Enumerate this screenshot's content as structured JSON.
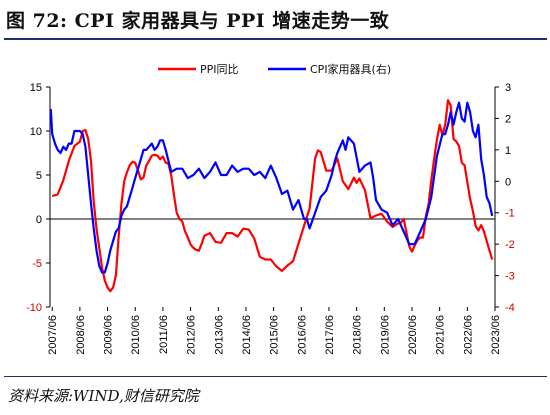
{
  "title": "图 72:  CPI 家用器具与 PPI 增速走势一致",
  "source": "资料来源:WIND,财信研究院",
  "chart_data": {
    "type": "line",
    "title": "图 72:  CPI 家用器具与 PPI 增速走势一致",
    "legend": "top-center",
    "left_axis": {
      "ylim": [
        -10,
        15
      ],
      "ticks": [
        "15",
        "10",
        "5",
        "0",
        "-5",
        "-10"
      ],
      "tick_values": [
        15,
        10,
        5,
        0,
        -5,
        -10
      ],
      "neg_color": "#d00000"
    },
    "right_axis": {
      "ylim": [
        -4,
        3
      ],
      "ticks": [
        "3",
        "2",
        "1",
        "0",
        "-1",
        "-2",
        "-3",
        "-4"
      ],
      "tick_values": [
        3,
        2,
        1,
        0,
        -1,
        -2,
        -3,
        -4
      ],
      "neg_color": "#d00000"
    },
    "x_range": [
      2007.42,
      2023.5
    ],
    "x_ticks": [
      "2007/06",
      "2008/06",
      "2009/06",
      "2010/06",
      "2011/06",
      "2012/06",
      "2013/06",
      "2014/06",
      "2015/06",
      "2016/06",
      "2017/06",
      "2018/06",
      "2019/06",
      "2020/06",
      "2021/06",
      "2022/06",
      "2023/06"
    ],
    "series": [
      {
        "name": "PPI同比",
        "axis": "left",
        "color": "#ff0000",
        "x": [
          2007.5,
          2007.7,
          2007.9,
          2008.1,
          2008.3,
          2008.5,
          2008.6,
          2008.7,
          2008.8,
          2008.9,
          2009.0,
          2009.1,
          2009.2,
          2009.3,
          2009.4,
          2009.5,
          2009.6,
          2009.7,
          2009.8,
          2009.9,
          2010.0,
          2010.1,
          2010.2,
          2010.3,
          2010.4,
          2010.5,
          2010.6,
          2010.7,
          2010.8,
          2010.9,
          2011.0,
          2011.1,
          2011.2,
          2011.3,
          2011.4,
          2011.5,
          2011.6,
          2011.7,
          2011.8,
          2011.9,
          2012.0,
          2012.1,
          2012.2,
          2012.3,
          2012.4,
          2012.5,
          2012.6,
          2012.7,
          2012.8,
          2012.9,
          2013.0,
          2013.2,
          2013.4,
          2013.6,
          2013.8,
          2014.0,
          2014.2,
          2014.4,
          2014.6,
          2014.8,
          2015.0,
          2015.2,
          2015.4,
          2015.6,
          2015.8,
          2016.0,
          2016.2,
          2016.4,
          2016.6,
          2016.8,
          2017.0,
          2017.1,
          2017.2,
          2017.4,
          2017.6,
          2017.8,
          2018.0,
          2018.2,
          2018.4,
          2018.5,
          2018.6,
          2018.8,
          2019.0,
          2019.2,
          2019.4,
          2019.6,
          2019.8,
          2020.0,
          2020.1,
          2020.2,
          2020.3,
          2020.4,
          2020.5,
          2020.6,
          2020.7,
          2020.8,
          2020.9,
          2021.0,
          2021.1,
          2021.2,
          2021.3,
          2021.4,
          2021.5,
          2021.6,
          2021.7,
          2021.8,
          2021.9,
          2022.0,
          2022.1,
          2022.2,
          2022.3,
          2022.4,
          2022.5,
          2022.6,
          2022.7,
          2022.8,
          2022.9,
          2023.0,
          2023.1,
          2023.2,
          2023.3,
          2023.4
        ],
        "values": [
          2.6,
          2.8,
          4.4,
          6.6,
          8.3,
          8.8,
          10.0,
          10.1,
          9.1,
          6.6,
          2.0,
          -1.1,
          -3.3,
          -5.5,
          -7.0,
          -7.8,
          -8.2,
          -7.8,
          -6.4,
          -2.1,
          1.7,
          4.3,
          5.3,
          6.1,
          6.5,
          6.4,
          5.5,
          4.5,
          4.7,
          6.1,
          6.6,
          7.2,
          7.3,
          7.2,
          6.8,
          7.1,
          6.4,
          6.3,
          5.0,
          2.7,
          0.7,
          0.0,
          -0.3,
          -1.4,
          -2.1,
          -2.9,
          -3.3,
          -3.5,
          -3.6,
          -2.8,
          -1.9,
          -1.6,
          -2.6,
          -2.7,
          -1.6,
          -1.6,
          -2.0,
          -1.1,
          -1.2,
          -2.2,
          -4.3,
          -4.6,
          -4.6,
          -5.4,
          -5.9,
          -5.3,
          -4.8,
          -2.8,
          -0.8,
          1.2,
          6.9,
          7.8,
          7.6,
          5.5,
          5.5,
          6.9,
          4.3,
          3.4,
          4.7,
          4.1,
          4.6,
          3.3,
          0.1,
          0.4,
          0.6,
          -0.3,
          -0.9,
          -0.5,
          -0.4,
          0.0,
          -1.5,
          -3.1,
          -3.7,
          -3.0,
          -2.4,
          -2.1,
          -2.1,
          0.3,
          1.7,
          4.4,
          6.8,
          9.0,
          10.7,
          9.5,
          10.7,
          13.5,
          12.9,
          9.1,
          8.8,
          8.3,
          6.4,
          6.1,
          4.2,
          2.3,
          0.9,
          -0.8,
          -1.3,
          -0.7,
          -1.4,
          -2.5,
          -3.6,
          -4.6
        ]
      },
      {
        "name": "CPI家用器具(右)",
        "axis": "right",
        "color": "#0000ff",
        "x": [
          2007.45,
          2007.5,
          2007.6,
          2007.7,
          2007.8,
          2007.9,
          2008.0,
          2008.1,
          2008.2,
          2008.3,
          2008.4,
          2008.5,
          2008.6,
          2008.7,
          2008.8,
          2008.9,
          2009.0,
          2009.1,
          2009.2,
          2009.3,
          2009.4,
          2009.5,
          2009.6,
          2009.7,
          2009.8,
          2009.9,
          2010.0,
          2010.1,
          2010.2,
          2010.3,
          2010.4,
          2010.5,
          2010.6,
          2010.7,
          2010.8,
          2010.9,
          2011.0,
          2011.1,
          2011.2,
          2011.3,
          2011.4,
          2011.5,
          2011.6,
          2011.8,
          2012.0,
          2012.2,
          2012.4,
          2012.6,
          2012.8,
          2013.0,
          2013.2,
          2013.4,
          2013.6,
          2013.8,
          2014.0,
          2014.2,
          2014.4,
          2014.6,
          2014.8,
          2015.0,
          2015.2,
          2015.4,
          2015.6,
          2015.8,
          2016.0,
          2016.2,
          2016.4,
          2016.6,
          2016.7,
          2016.8,
          2017.0,
          2017.2,
          2017.4,
          2017.6,
          2017.7,
          2017.8,
          2018.0,
          2018.1,
          2018.2,
          2018.4,
          2018.6,
          2018.8,
          2019.0,
          2019.1,
          2019.2,
          2019.4,
          2019.6,
          2019.8,
          2020.0,
          2020.2,
          2020.4,
          2020.6,
          2020.8,
          2021.0,
          2021.2,
          2021.4,
          2021.6,
          2021.7,
          2021.8,
          2021.9,
          2022.0,
          2022.1,
          2022.2,
          2022.3,
          2022.4,
          2022.5,
          2022.6,
          2022.7,
          2022.8,
          2022.9,
          2023.0,
          2023.1,
          2023.2,
          2023.3,
          2023.4
        ],
        "values": [
          2.3,
          1.5,
          1.2,
          1.0,
          0.9,
          1.1,
          1.0,
          1.2,
          1.2,
          1.6,
          1.6,
          1.6,
          1.5,
          1.1,
          0.2,
          -0.7,
          -1.5,
          -2.2,
          -2.7,
          -2.9,
          -2.9,
          -2.6,
          -2.2,
          -1.9,
          -1.6,
          -1.5,
          -1.1,
          -0.9,
          -0.8,
          -0.5,
          -0.2,
          0.1,
          0.4,
          0.7,
          1.0,
          1.0,
          1.1,
          1.2,
          1.0,
          1.1,
          1.3,
          1.3,
          1.0,
          0.3,
          0.4,
          0.4,
          0.1,
          0.2,
          0.4,
          0.1,
          0.3,
          0.6,
          0.2,
          0.2,
          0.5,
          0.3,
          0.4,
          0.4,
          0.2,
          0.3,
          0.1,
          0.5,
          0.1,
          -0.4,
          -0.3,
          -0.9,
          -0.6,
          -1.2,
          -1.2,
          -1.5,
          -1.0,
          -0.5,
          -0.3,
          0.2,
          0.6,
          0.9,
          1.3,
          1.0,
          1.4,
          1.2,
          0.3,
          0.5,
          0.6,
          0.1,
          -0.6,
          -0.9,
          -1.0,
          -1.4,
          -1.2,
          -1.6,
          -2.0,
          -2.0,
          -1.6,
          -1.2,
          -0.5,
          0.8,
          1.5,
          1.5,
          1.8,
          2.2,
          1.8,
          2.2,
          2.5,
          2.0,
          1.9,
          2.5,
          2.2,
          1.6,
          1.4,
          1.8,
          0.7,
          0.2,
          -0.5,
          -0.7,
          -1.1
        ]
      }
    ]
  }
}
